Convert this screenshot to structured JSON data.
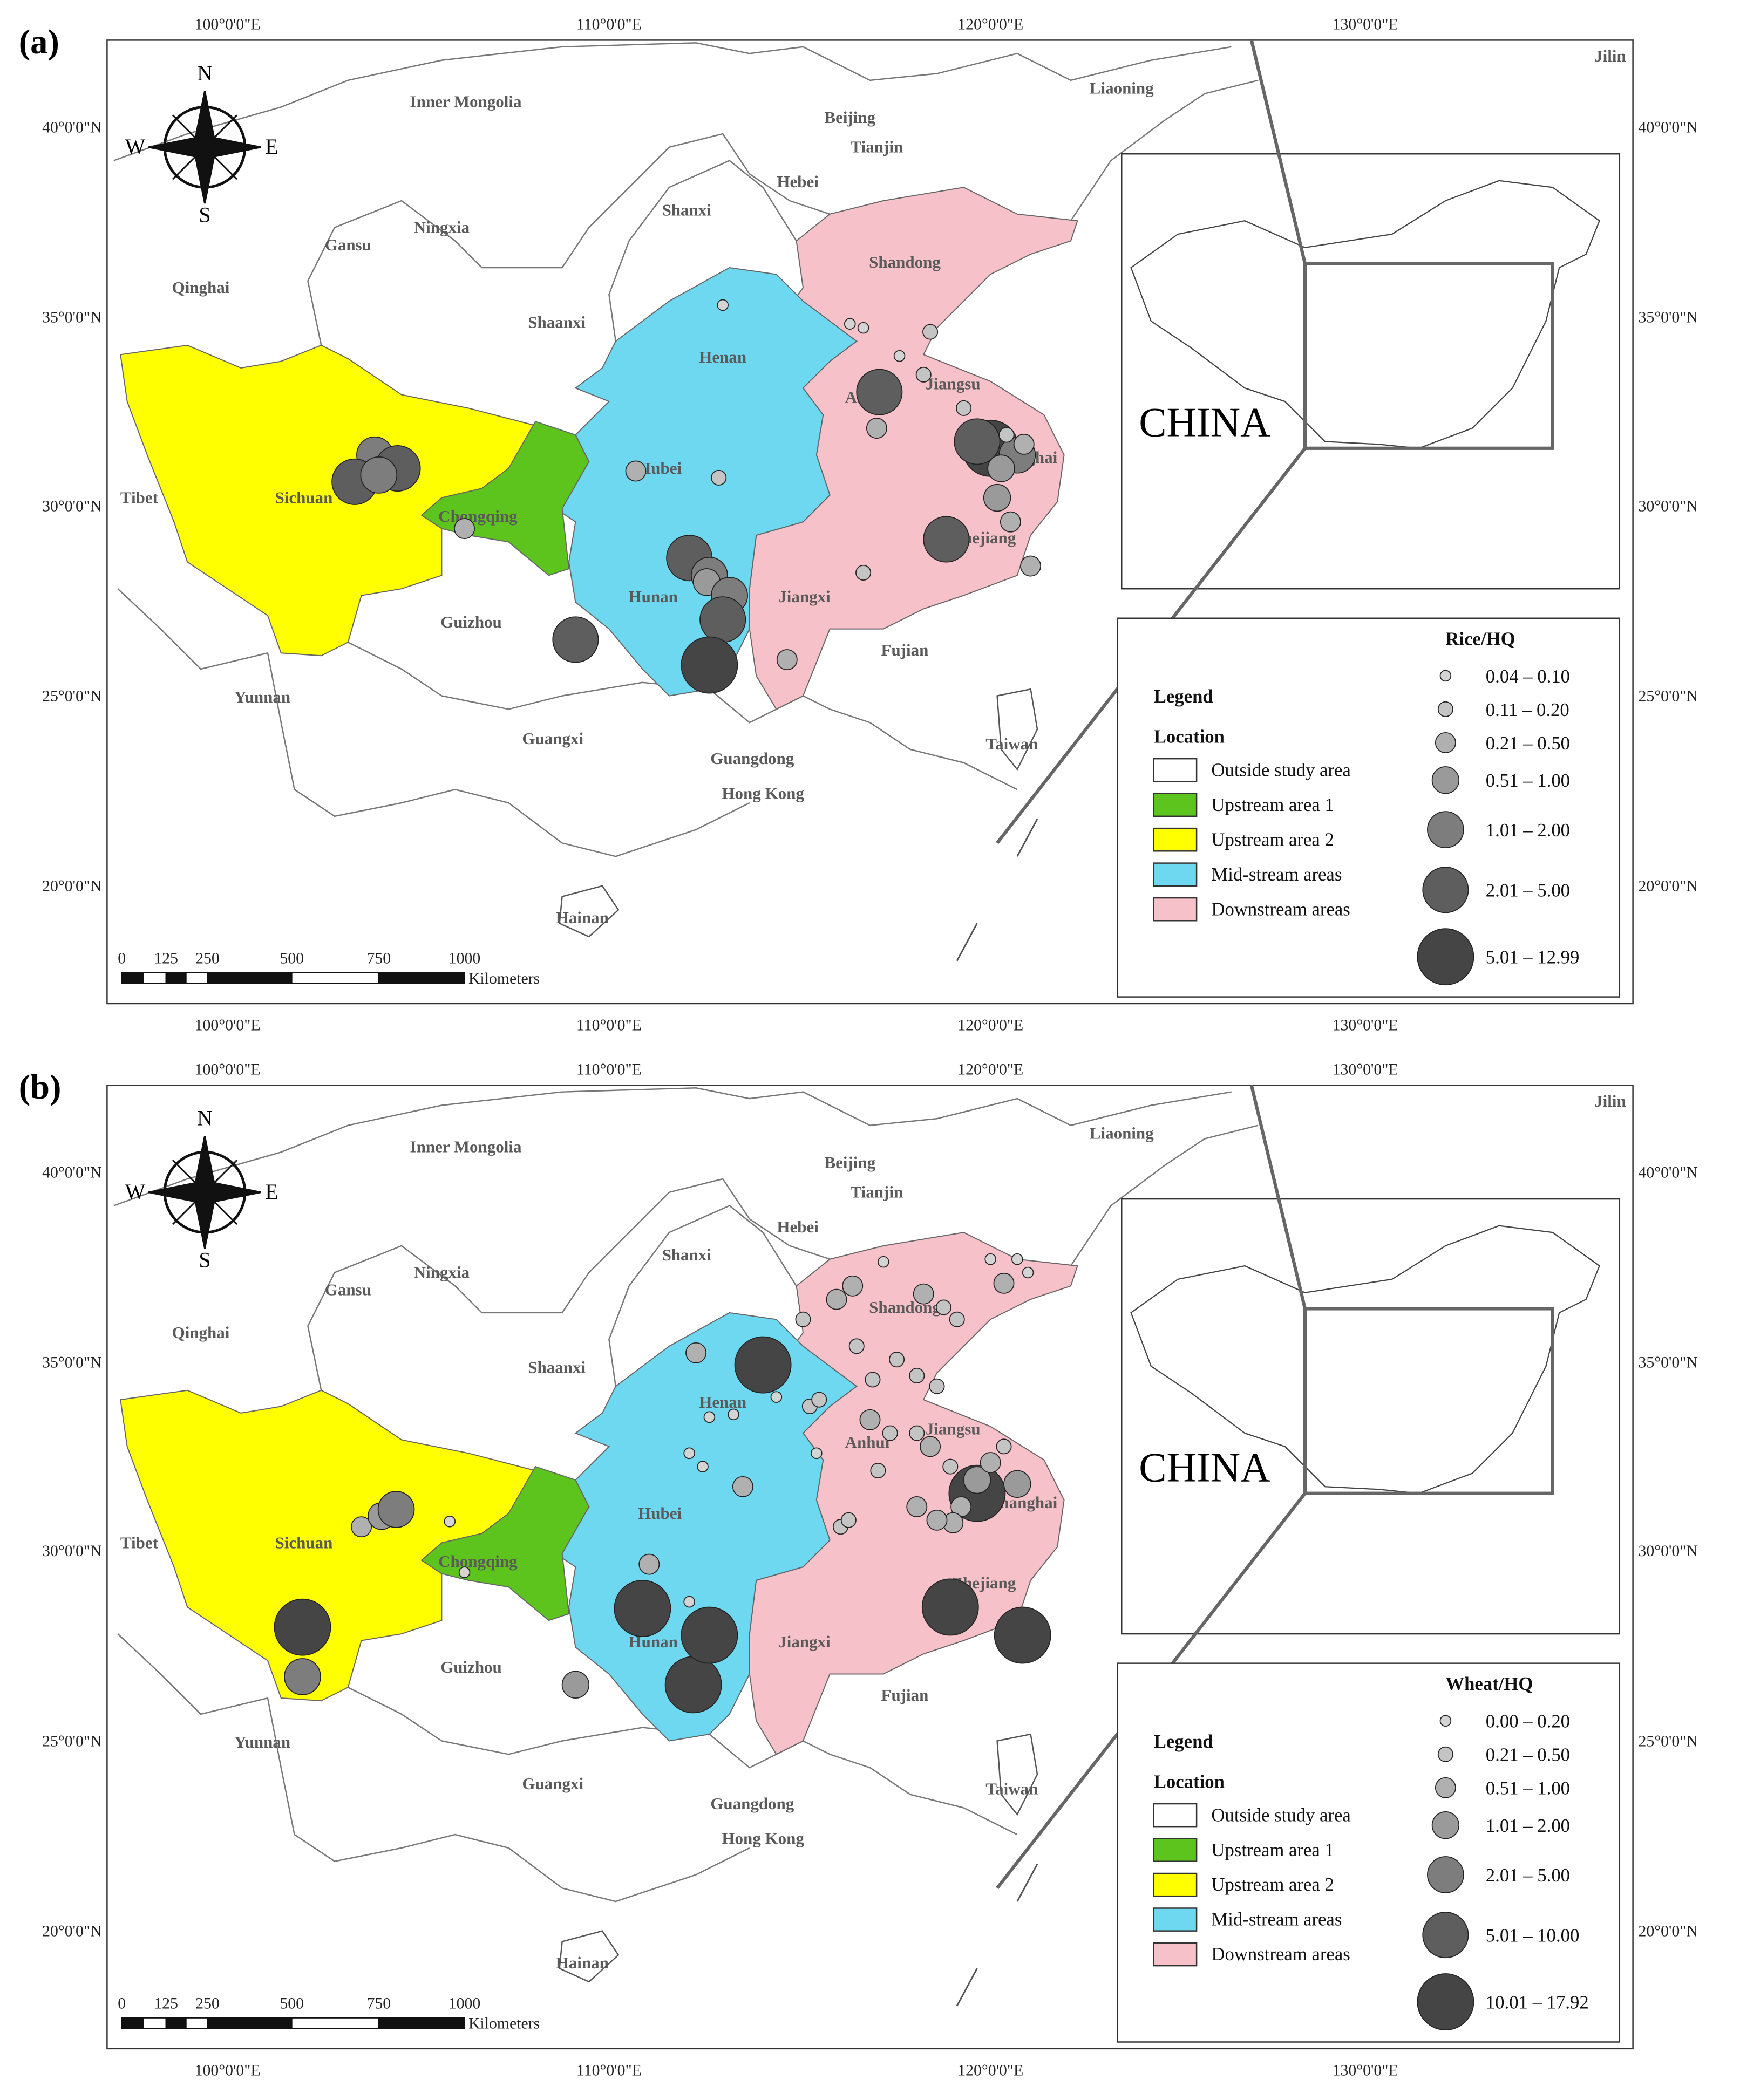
{
  "panels": [
    {
      "label": "(a)",
      "lon_labels": [
        "100°0'0\"E",
        "110°0'0\"E",
        "120°0'0\"E",
        "130°0'0\"E"
      ],
      "lat_labels": [
        "40°0'0\"N",
        "35°0'0\"N",
        "30°0'0\"N",
        "25°0'0\"N",
        "20°0'0\"N"
      ],
      "compass": [
        "N",
        "S",
        "W",
        "E"
      ],
      "provinces": [
        "Inner Mongolia",
        "Liaoning",
        "Jilin",
        "Beijing",
        "Tianjin",
        "Hebei",
        "Shanxi",
        "Shandong",
        "Gansu",
        "Ningxia",
        "Qinghai",
        "Shaanxi",
        "Henan",
        "Jiangsu",
        "Anhui",
        "Hubei",
        "Shanghai",
        "Chongqing",
        "Sichuan",
        "Tibet",
        "Zhejiang",
        "Hunan",
        "Jiangxi",
        "Guizhou",
        "Fujian",
        "Yunnan",
        "Guangxi",
        "Guangdong",
        "Hong Kong",
        "Taiwan",
        "Hainan"
      ],
      "inset_label": "CHINA",
      "scale": {
        "ticks": [
          "0",
          "125",
          "250",
          "500",
          "750",
          "1000"
        ],
        "unit": "Kilometers"
      },
      "legend": {
        "title": "Legend",
        "location_title": "Location",
        "location_items": [
          {
            "label": "Outside study area",
            "color": "#ffffff"
          },
          {
            "label": "Upstream area 1",
            "color": "#5cc41c"
          },
          {
            "label": "Upstream area 2",
            "color": "#ffff00"
          },
          {
            "label": "Mid-stream areas",
            "color": "#6dd8f0"
          },
          {
            "label": "Downstream areas",
            "color": "#f7c1c9"
          }
        ],
        "size_title": "Rice/HQ",
        "size_items": [
          "0.04 – 0.10",
          "0.11 – 0.20",
          "0.21 – 0.50",
          "0.51 – 1.00",
          "1.01 – 2.00",
          "2.01 – 5.00",
          "5.01 – 12.99"
        ]
      }
    },
    {
      "label": "(b)",
      "lon_labels": [
        "100°0'0\"E",
        "110°0'0\"E",
        "120°0'0\"E",
        "130°0'0\"E"
      ],
      "lat_labels": [
        "40°0'0\"N",
        "35°0'0\"N",
        "30°0'0\"N",
        "25°0'0\"N",
        "20°0'0\"N"
      ],
      "compass": [
        "N",
        "S",
        "W",
        "E"
      ],
      "provinces": [
        "Inner Mongolia",
        "Liaoning",
        "Jilin",
        "Beijing",
        "Tianjin",
        "Hebei",
        "Shanxi",
        "Shandong",
        "Gansu",
        "Ningxia",
        "Qinghai",
        "Shaanxi",
        "Henan",
        "Jiangsu",
        "Anhui",
        "Hubei",
        "Shanghai",
        "Chongqing",
        "Sichuan",
        "Tibet",
        "Zhejiang",
        "Hunan",
        "Jiangxi",
        "Guizhou",
        "Fujian",
        "Yunnan",
        "Guangxi",
        "Guangdong",
        "Hong Kong",
        "Taiwan",
        "Hainan"
      ],
      "inset_label": "CHINA",
      "scale": {
        "ticks": [
          "0",
          "125",
          "250",
          "500",
          "750",
          "1000"
        ],
        "unit": "Kilometers"
      },
      "legend": {
        "title": "Legend",
        "location_title": "Location",
        "location_items": [
          {
            "label": "Outside study area",
            "color": "#ffffff"
          },
          {
            "label": "Upstream area 1",
            "color": "#5cc41c"
          },
          {
            "label": "Upstream area 2",
            "color": "#ffff00"
          },
          {
            "label": "Mid-stream areas",
            "color": "#6dd8f0"
          },
          {
            "label": "Downstream areas",
            "color": "#f7c1c9"
          }
        ],
        "size_title": "Wheat/HQ",
        "size_items": [
          "0.00 – 0.20",
          "0.21 – 0.50",
          "0.51 – 1.00",
          "1.01 – 2.00",
          "2.01 – 5.00",
          "5.01 – 10.00",
          "10.01 – 17.92"
        ]
      }
    }
  ]
}
